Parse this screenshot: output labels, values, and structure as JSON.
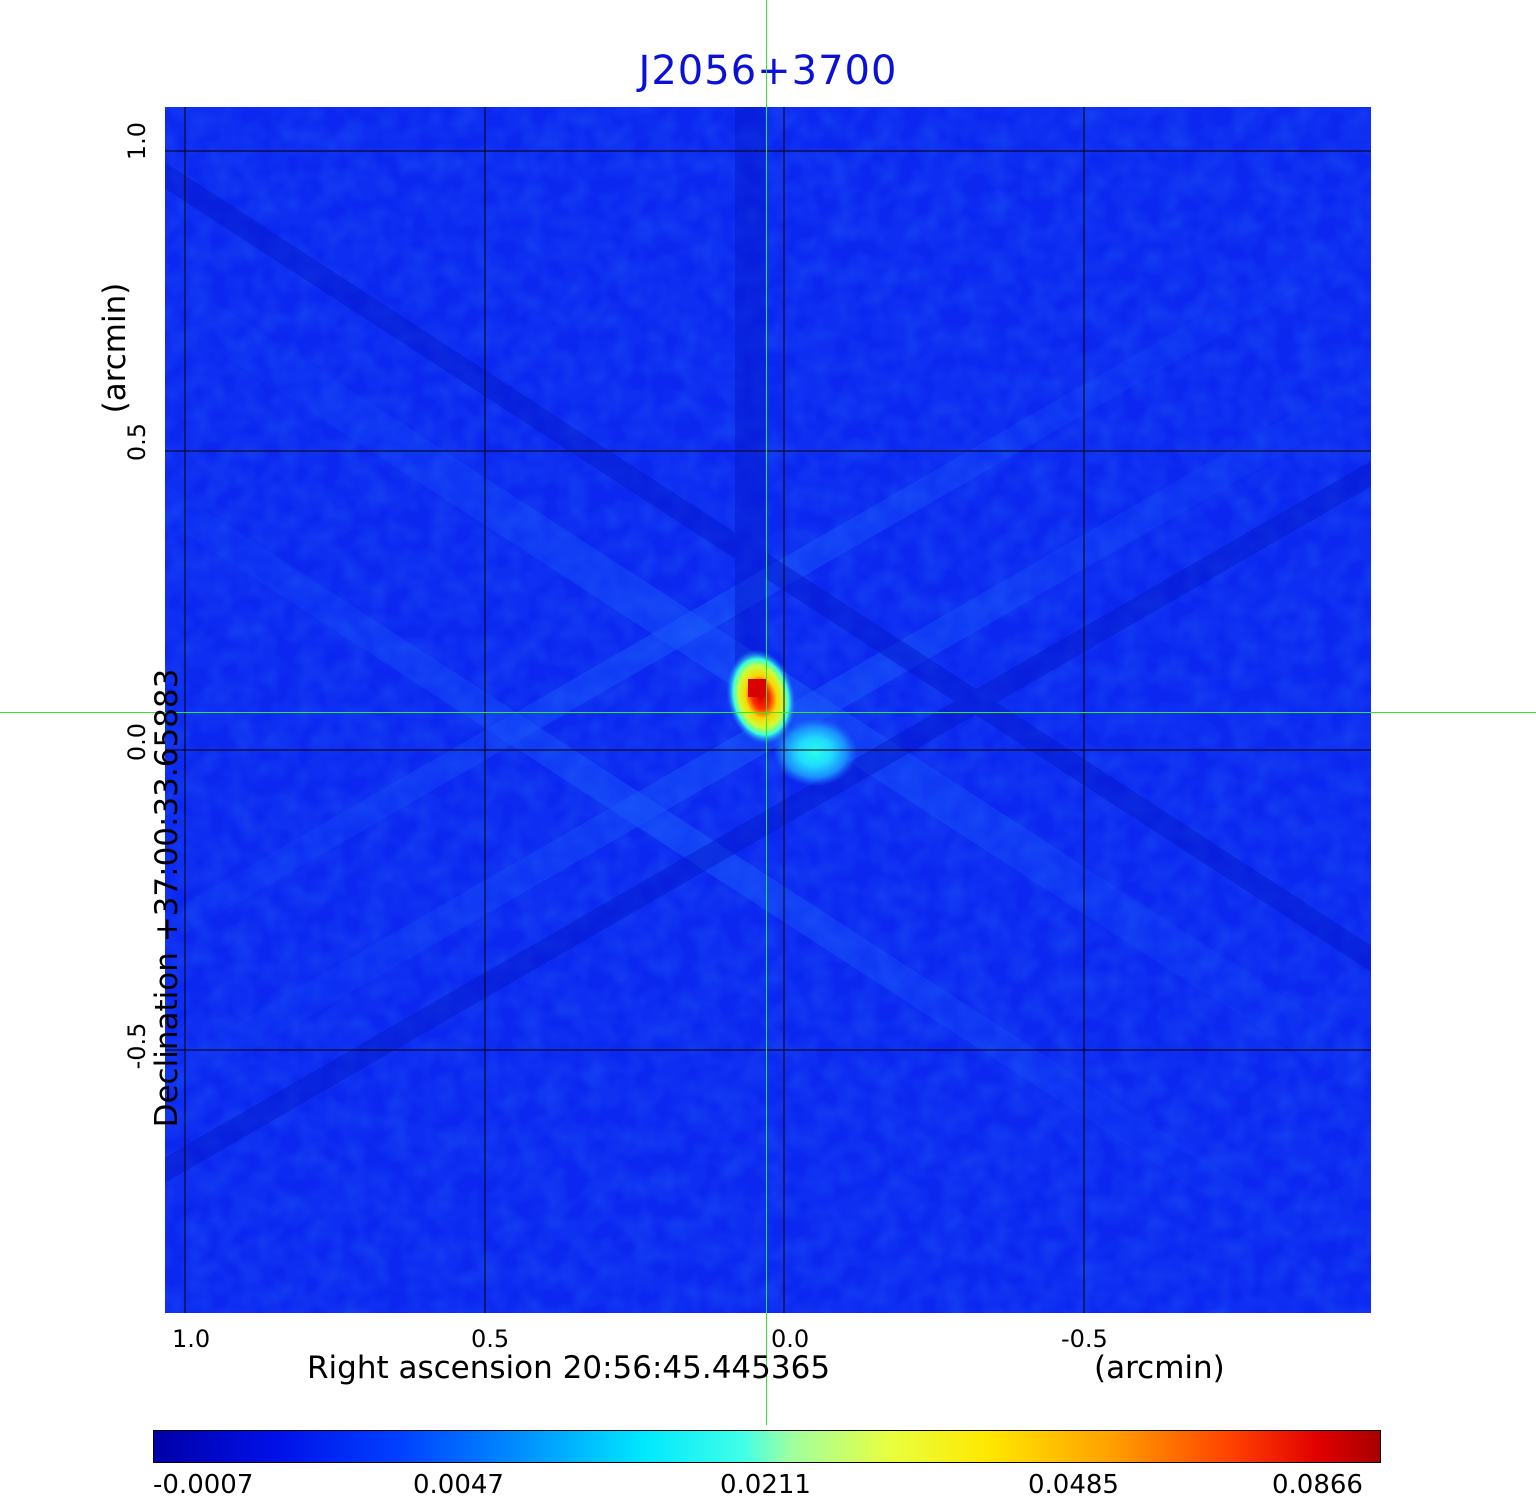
{
  "title": "J2056+3700",
  "x_axis": {
    "label": "Right ascension  20:56:45.445365",
    "unit": "(arcmin)",
    "ticks": [
      "1.0",
      "0.5",
      "0.0",
      "-0.5"
    ]
  },
  "y_axis": {
    "label": "Declination  +37:00:33.65883",
    "unit": "(arcmin)",
    "ticks": [
      "1.0",
      "0.5",
      "0.0",
      "-0.5"
    ]
  },
  "colorbar": {
    "colormap": "jet",
    "ticks": [
      "-0.0007",
      "0.0047",
      "0.0211",
      "0.0485",
      "0.0866"
    ]
  },
  "colors": {
    "title": "#0a10d8",
    "crosshair": "#2ee82e",
    "background_field": "#0b24f4"
  },
  "image": {
    "description_hint": "radio map with compact bright source near center and secondary component",
    "grid": true,
    "crosshair": true
  }
}
